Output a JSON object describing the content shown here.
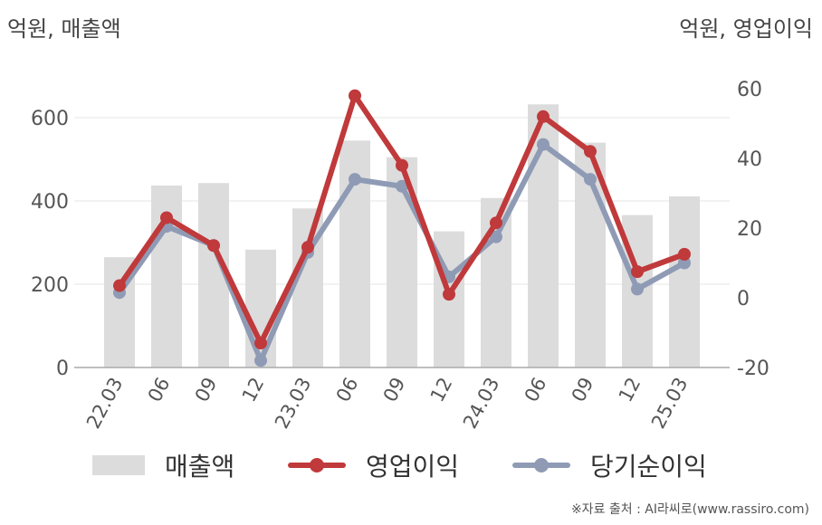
{
  "units": {
    "left": "억원, 매출액",
    "right": "억원, 영업이익"
  },
  "legend": {
    "bar": "매출액",
    "op": "영업이익",
    "net": "당기순이익"
  },
  "colors": {
    "bar": "#dcdcdc",
    "op": "#c0393b",
    "net": "#8f9bb5",
    "grid": "#e6e6e6",
    "axis": "#aaaaaa"
  },
  "source": "※자료 출처 : AI라씨로(www.rassiro.com)",
  "chart_data": {
    "type": "bar",
    "categories": [
      "22.03",
      "06",
      "09",
      "12",
      "23.03",
      "06",
      "09",
      "12",
      "24.03",
      "06",
      "09",
      "12",
      "25.03"
    ],
    "series": [
      {
        "name": "매출액",
        "type": "bar",
        "axis": "left",
        "values": [
          265,
          437,
          443,
          283,
          382,
          545,
          505,
          327,
          407,
          632,
          540,
          366,
          411
        ]
      },
      {
        "name": "영업이익",
        "type": "line",
        "axis": "right",
        "values": [
          3.5,
          23,
          15,
          -13,
          14.5,
          58,
          38,
          1,
          21.5,
          52,
          42,
          7.5,
          12.5
        ]
      },
      {
        "name": "당기순이익",
        "type": "line",
        "axis": "right",
        "values": [
          1.5,
          20.5,
          15,
          -18,
          13,
          34,
          32,
          6,
          17.5,
          44,
          34,
          2.5,
          10
        ]
      }
    ],
    "y_left": {
      "ticks": [
        "0",
        "200",
        "400",
        "600"
      ],
      "range": [
        0,
        700
      ]
    },
    "y_right": {
      "ticks": [
        "-20",
        "0",
        "20",
        "40",
        "60"
      ],
      "range": [
        -20,
        60
      ]
    }
  }
}
